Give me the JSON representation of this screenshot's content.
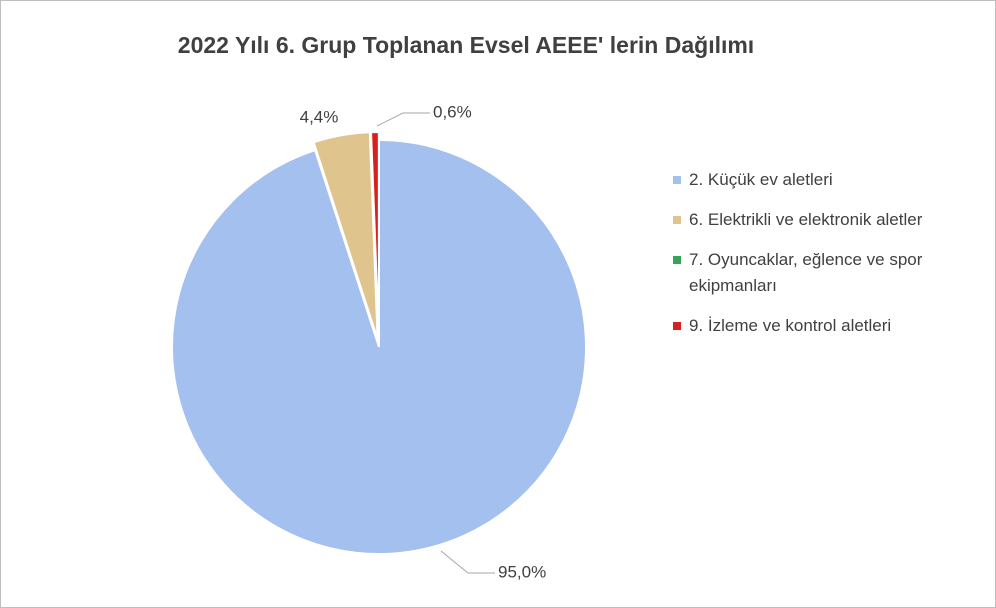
{
  "chart_data": {
    "type": "pie",
    "title": "2022 Yılı 6. Grup Toplanan Evsel AEEE' lerin Dağılımı",
    "categories": [
      "2. Küçük ev aletleri",
      "6. Elektrikli ve elektronik aletler",
      "7. Oyuncaklar, eğlence ve spor ekipmanları",
      "9. İzleme ve kontrol aletleri"
    ],
    "values": [
      95.0,
      4.4,
      0,
      0.6
    ],
    "value_labels": [
      "95,0%",
      "4,4%",
      null,
      "0,6%"
    ],
    "colors": [
      "#a3c0ee",
      "#dfc48e",
      "#3aa35a",
      "#d92020"
    ],
    "legend": "right"
  }
}
